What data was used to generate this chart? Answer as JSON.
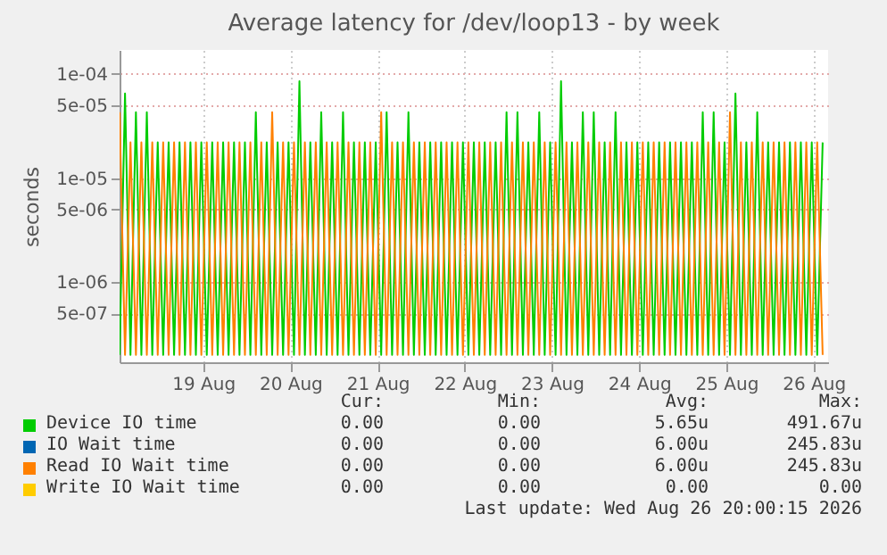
{
  "chart_data": {
    "type": "line",
    "title": "Average latency for /dev/loop13 - by week",
    "ylabel": "seconds",
    "log": "y",
    "grid": true,
    "legend": "bottom",
    "ylim": [
      1.7e-07,
      0.00017
    ],
    "yticks": [
      {
        "value": 0.0001,
        "label": "1e-04"
      },
      {
        "value": 5e-05,
        "label": "5e-05"
      },
      {
        "value": 1e-05,
        "label": "1e-05"
      },
      {
        "value": 5e-06,
        "label": "5e-06"
      },
      {
        "value": 1e-06,
        "label": "1e-06"
      },
      {
        "value": 5e-07,
        "label": "5e-07"
      }
    ],
    "xlim": [
      "2026-08-18T13:00",
      "2026-08-26T16:00"
    ],
    "xticks": [
      {
        "value": "2026-08-19T12:00",
        "label": "19 Aug"
      },
      {
        "value": "2026-08-20T12:00",
        "label": "20 Aug"
      },
      {
        "value": "2026-08-21T12:00",
        "label": "21 Aug"
      },
      {
        "value": "2026-08-22T12:00",
        "label": "22 Aug"
      },
      {
        "value": "2026-08-23T12:00",
        "label": "23 Aug"
      },
      {
        "value": "2026-08-24T12:00",
        "label": "24 Aug"
      },
      {
        "value": "2026-08-25T12:00",
        "label": "25 Aug"
      },
      {
        "value": "2026-08-26T12:00",
        "label": "26 Aug"
      }
    ],
    "x": [
      "2026-08-18T13:00",
      "2026-08-18T14:30",
      "2026-08-18T16:00",
      "2026-08-18T17:30",
      "2026-08-18T19:00",
      "2026-08-18T20:30",
      "2026-08-18T22:00",
      "2026-08-18T23:30",
      "2026-08-19T01:00",
      "2026-08-19T02:30",
      "2026-08-19T04:00",
      "2026-08-19T05:30",
      "2026-08-19T07:00",
      "2026-08-19T08:30",
      "2026-08-19T10:00",
      "2026-08-19T11:30",
      "2026-08-19T13:00",
      "2026-08-19T14:30",
      "2026-08-19T16:00",
      "2026-08-19T17:30",
      "2026-08-19T19:00",
      "2026-08-19T20:30",
      "2026-08-19T22:00",
      "2026-08-19T23:30",
      "2026-08-20T01:00",
      "2026-08-20T02:30",
      "2026-08-20T04:00",
      "2026-08-20T05:30",
      "2026-08-20T07:00",
      "2026-08-20T08:30",
      "2026-08-20T10:00",
      "2026-08-20T11:30",
      "2026-08-20T13:00",
      "2026-08-20T14:30",
      "2026-08-20T16:00",
      "2026-08-20T17:30",
      "2026-08-20T19:00",
      "2026-08-20T20:30",
      "2026-08-20T22:00",
      "2026-08-20T23:30",
      "2026-08-21T01:00",
      "2026-08-21T02:30",
      "2026-08-21T04:00",
      "2026-08-21T05:30",
      "2026-08-21T07:00",
      "2026-08-21T08:30",
      "2026-08-21T10:00",
      "2026-08-21T11:30",
      "2026-08-21T13:00",
      "2026-08-21T14:30",
      "2026-08-21T16:00",
      "2026-08-21T17:30",
      "2026-08-21T19:00",
      "2026-08-21T20:30",
      "2026-08-21T22:00",
      "2026-08-21T23:30",
      "2026-08-22T01:00",
      "2026-08-22T02:30",
      "2026-08-22T04:00",
      "2026-08-22T05:30",
      "2026-08-22T07:00",
      "2026-08-22T08:30",
      "2026-08-22T10:00",
      "2026-08-22T11:30",
      "2026-08-22T13:00",
      "2026-08-22T14:30",
      "2026-08-22T16:00",
      "2026-08-22T17:30",
      "2026-08-22T19:00",
      "2026-08-22T20:30",
      "2026-08-22T22:00",
      "2026-08-22T23:30",
      "2026-08-23T01:00",
      "2026-08-23T02:30",
      "2026-08-23T04:00",
      "2026-08-23T05:30",
      "2026-08-23T07:00",
      "2026-08-23T08:30",
      "2026-08-23T10:00",
      "2026-08-23T11:30",
      "2026-08-23T13:00",
      "2026-08-23T14:30",
      "2026-08-23T16:00",
      "2026-08-23T17:30",
      "2026-08-23T19:00",
      "2026-08-23T20:30",
      "2026-08-23T22:00",
      "2026-08-23T23:30",
      "2026-08-24T01:00",
      "2026-08-24T02:30",
      "2026-08-24T04:00",
      "2026-08-24T05:30",
      "2026-08-24T07:00",
      "2026-08-24T08:30",
      "2026-08-24T10:00",
      "2026-08-24T11:30",
      "2026-08-24T13:00",
      "2026-08-24T14:30",
      "2026-08-24T16:00",
      "2026-08-24T17:30",
      "2026-08-24T19:00",
      "2026-08-24T20:30",
      "2026-08-24T22:00",
      "2026-08-24T23:30",
      "2026-08-25T01:00",
      "2026-08-25T02:30",
      "2026-08-25T04:00",
      "2026-08-25T05:30",
      "2026-08-25T07:00",
      "2026-08-25T08:30",
      "2026-08-25T10:00",
      "2026-08-25T11:30",
      "2026-08-25T13:00",
      "2026-08-25T14:30",
      "2026-08-25T16:00",
      "2026-08-25T17:30",
      "2026-08-25T19:00",
      "2026-08-25T20:30",
      "2026-08-25T22:00",
      "2026-08-25T23:30",
      "2026-08-26T01:00",
      "2026-08-26T02:30",
      "2026-08-26T04:00",
      "2026-08-26T05:30",
      "2026-08-26T07:00",
      "2026-08-26T08:30",
      "2026-08-26T10:00",
      "2026-08-26T11:30",
      "2026-08-26T13:00",
      "2026-08-26T14:30"
    ],
    "series": [
      {
        "name": "Device IO time",
        "color": "#00cc00",
        "values": [
          2e-07,
          6.5e-05,
          2e-07,
          4.3e-05,
          2e-07,
          4.3e-05,
          2e-07,
          2.2e-05,
          2e-07,
          2.2e-05,
          2e-07,
          2.2e-05,
          2e-07,
          2.2e-05,
          2e-07,
          2.2e-05,
          2e-07,
          2.2e-05,
          2e-07,
          2.2e-05,
          2e-07,
          2.2e-05,
          2e-07,
          2.2e-05,
          2e-07,
          4.3e-05,
          2e-07,
          2.2e-05,
          2e-07,
          2.2e-05,
          2e-07,
          2.2e-05,
          2e-07,
          8.5e-05,
          2e-07,
          2.2e-05,
          2e-07,
          4.3e-05,
          2e-07,
          2.2e-05,
          2e-07,
          4.3e-05,
          2e-07,
          2.2e-05,
          2e-07,
          2.2e-05,
          2e-07,
          2.2e-05,
          2e-07,
          4.3e-05,
          2e-07,
          2.2e-05,
          2e-07,
          4.3e-05,
          2e-07,
          2.2e-05,
          2e-07,
          2.2e-05,
          2e-07,
          2.2e-05,
          2e-07,
          2.2e-05,
          2e-07,
          2.2e-05,
          2e-07,
          2.2e-05,
          2e-07,
          2.2e-05,
          2e-07,
          2.2e-05,
          2e-07,
          4.3e-05,
          2e-07,
          4.3e-05,
          2e-07,
          2.2e-05,
          2e-07,
          4.3e-05,
          2e-07,
          2.2e-05,
          2e-07,
          8.5e-05,
          2e-07,
          2.2e-05,
          2e-07,
          4.3e-05,
          2e-07,
          4.3e-05,
          2e-07,
          2.2e-05,
          2e-07,
          4.3e-05,
          2e-07,
          2.2e-05,
          2e-07,
          2.2e-05,
          2e-07,
          2.2e-05,
          2e-07,
          2.2e-05,
          2e-07,
          2.2e-05,
          2e-07,
          2.2e-05,
          2e-07,
          2.2e-05,
          2e-07,
          4.3e-05,
          2e-07,
          4.3e-05,
          2e-07,
          2.2e-05,
          2e-07,
          6.5e-05,
          2e-07,
          2.2e-05,
          2e-07,
          4.3e-05,
          2e-07,
          2.2e-05,
          2e-07,
          2.2e-05,
          2e-07,
          2.2e-05,
          2e-07,
          2.2e-05,
          2e-07,
          2.2e-05,
          2e-07,
          2.2e-05
        ]
      },
      {
        "name": "IO Wait time",
        "color": "#0066b3",
        "values": [
          null,
          null,
          null,
          null,
          null,
          null,
          null,
          null,
          null,
          null,
          null,
          null,
          null,
          null,
          null,
          null,
          null,
          null,
          null,
          null,
          null,
          null,
          null,
          null,
          null,
          null,
          null,
          null,
          null,
          null,
          null,
          null,
          null,
          null,
          null,
          null,
          null,
          null,
          null,
          null,
          null,
          null,
          null,
          null,
          null,
          null,
          null,
          null,
          null,
          null,
          null,
          null,
          null,
          null,
          null,
          null,
          null,
          null,
          null,
          null,
          null,
          null,
          null,
          null,
          null,
          null,
          null,
          null,
          null,
          null,
          null,
          null,
          null,
          null,
          null,
          null,
          null,
          null,
          null,
          null,
          null,
          null,
          null,
          null,
          null,
          null,
          null,
          null,
          null,
          null,
          null,
          null,
          null,
          null,
          null,
          null,
          null,
          null,
          null,
          null,
          null,
          null,
          null,
          null,
          null,
          null,
          null,
          null,
          null,
          null,
          null,
          null,
          null,
          null,
          null,
          null,
          null,
          null,
          null,
          null,
          null,
          null,
          null,
          null,
          null,
          null,
          null,
          null,
          null,
          null
        ]
      },
      {
        "name": "Read IO Wait time",
        "color": "#ff8000",
        "values": [
          4.3e-05,
          2e-07,
          2.2e-05,
          2e-07,
          2.2e-05,
          2e-07,
          2.2e-05,
          2e-07,
          2.2e-05,
          2e-07,
          2.2e-05,
          2e-07,
          2.2e-05,
          2e-07,
          2.2e-05,
          2e-07,
          2.2e-05,
          2e-07,
          2.2e-05,
          2e-07,
          2.2e-05,
          2e-07,
          2.2e-05,
          2e-07,
          2.2e-05,
          2e-07,
          2.2e-05,
          2e-07,
          4.3e-05,
          2e-07,
          2.2e-05,
          2e-07,
          2.2e-05,
          2e-07,
          2.2e-05,
          2e-07,
          2.2e-05,
          2e-07,
          2.2e-05,
          2e-07,
          2.2e-05,
          2e-07,
          2.2e-05,
          2e-07,
          2.2e-05,
          2e-07,
          2.2e-05,
          2e-07,
          4.3e-05,
          2e-07,
          2.2e-05,
          2e-07,
          2.2e-05,
          2e-07,
          2.2e-05,
          2e-07,
          2.2e-05,
          2e-07,
          2.2e-05,
          2e-07,
          2.2e-05,
          2e-07,
          2.2e-05,
          2e-07,
          2.2e-05,
          2e-07,
          2.2e-05,
          2e-07,
          2.2e-05,
          2e-07,
          2.2e-05,
          2e-07,
          2.2e-05,
          2e-07,
          2.2e-05,
          2e-07,
          2.2e-05,
          2e-07,
          2.2e-05,
          2e-07,
          2.2e-05,
          2e-07,
          2.2e-05,
          2e-07,
          2.2e-05,
          2e-07,
          2.2e-05,
          2e-07,
          2.2e-05,
          2e-07,
          2.2e-05,
          2e-07,
          2.2e-05,
          2e-07,
          2.2e-05,
          2e-07,
          2.2e-05,
          2e-07,
          2.2e-05,
          2e-07,
          2.2e-05,
          2e-07,
          2.2e-05,
          2e-07,
          2.2e-05,
          2e-07,
          2.2e-05,
          2e-07,
          2.2e-05,
          2e-07,
          2.2e-05,
          2e-07,
          4.3e-05,
          2e-07,
          2.2e-05,
          2e-07,
          2.2e-05,
          2e-07,
          2.2e-05,
          2e-07,
          2.2e-05,
          2e-07,
          2.2e-05,
          2e-07,
          2.2e-05,
          2e-07,
          2.2e-05,
          2e-07,
          2.2e-05,
          2e-07
        ]
      },
      {
        "name": "Write IO Wait time",
        "color": "#ffcc00",
        "values": [
          null,
          null,
          null,
          null,
          null,
          null,
          null,
          null,
          null,
          null,
          null,
          null,
          null,
          null,
          null,
          null,
          null,
          null,
          null,
          null,
          null,
          null,
          null,
          null,
          null,
          null,
          null,
          null,
          null,
          null,
          null,
          null,
          null,
          null,
          null,
          null,
          null,
          null,
          null,
          null,
          null,
          null,
          null,
          null,
          null,
          null,
          null,
          null,
          null,
          null,
          null,
          null,
          null,
          null,
          null,
          null,
          null,
          null,
          null,
          null,
          null,
          null,
          null,
          null,
          null,
          null,
          null,
          null,
          null,
          null,
          null,
          null,
          null,
          null,
          null,
          null,
          null,
          null,
          null,
          null,
          null,
          null,
          null,
          null,
          null,
          null,
          null,
          null,
          null,
          null,
          null,
          null,
          null,
          null,
          null,
          null,
          null,
          null,
          null,
          null,
          null,
          null,
          null,
          null,
          null,
          null,
          null,
          null,
          null,
          null,
          null,
          null,
          null,
          null,
          null,
          null,
          null,
          null,
          null,
          null,
          null,
          null,
          null,
          null,
          null,
          null,
          null,
          null,
          null,
          null
        ]
      }
    ],
    "annotations": [
      "Cur:",
      "Min:",
      "Avg:",
      "Max:",
      "0.00",
      "0.00",
      "5.65u",
      "491.67u",
      "0.00",
      "0.00",
      "6.00u",
      "245.83u",
      "0.00",
      "0.00",
      "6.00u",
      "245.83u",
      "0.00",
      "0.00",
      "0.00",
      "0.00",
      "Last update: Wed Aug 26 20:00:15 2026"
    ]
  }
}
